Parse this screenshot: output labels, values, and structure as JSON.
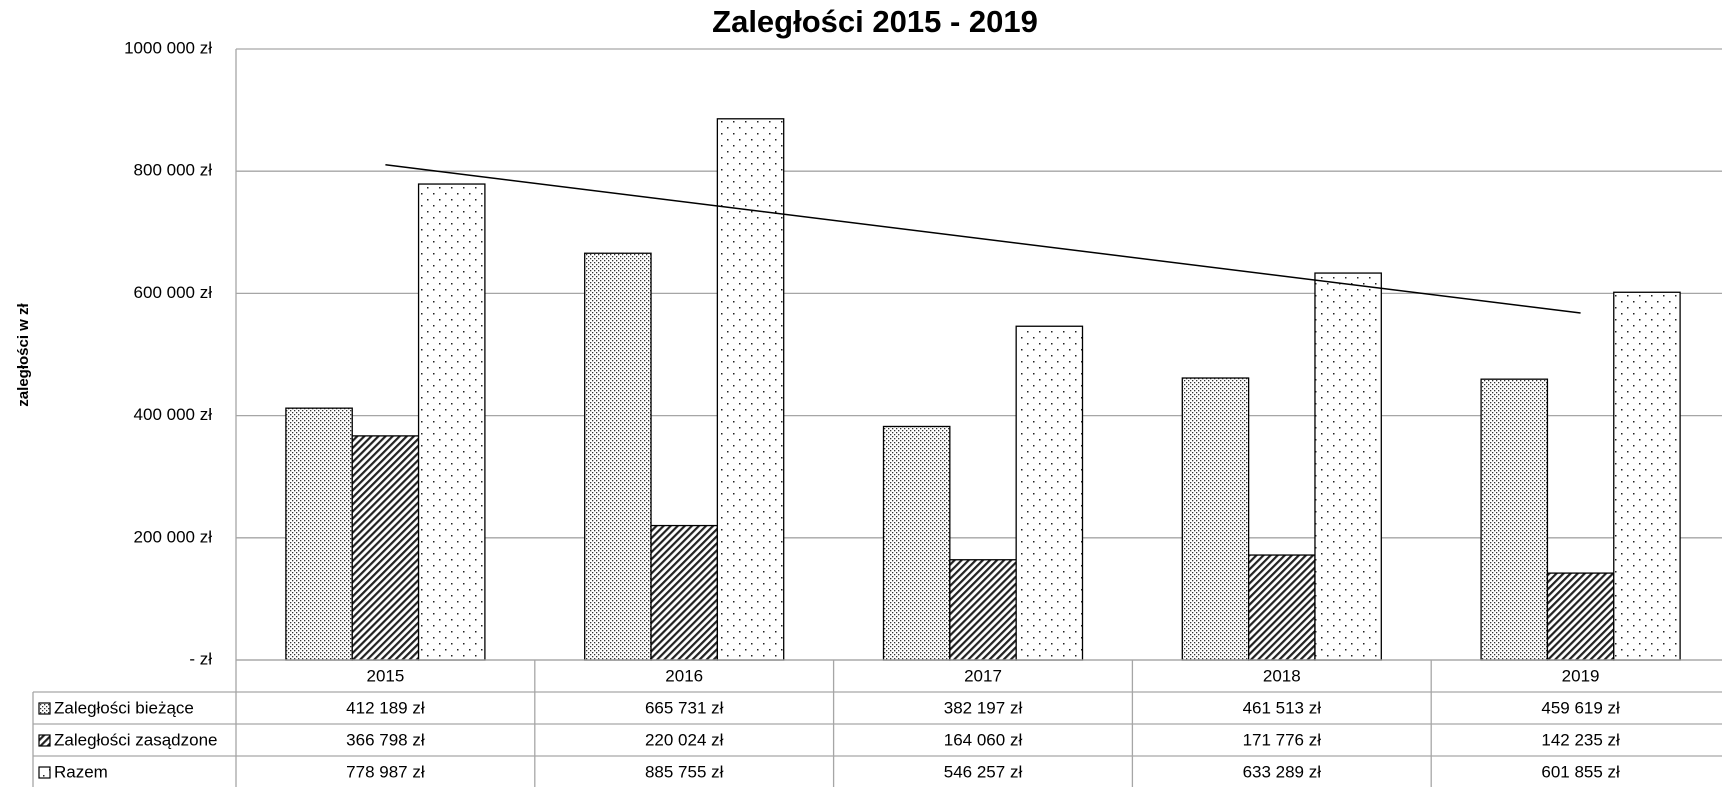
{
  "chart_data": {
    "type": "bar",
    "title": "Zaległości 2015 - 2019",
    "y_label": "zaległości  w zł",
    "categories": [
      "2015",
      "2016",
      "2017",
      "2018",
      "2019"
    ],
    "series": [
      {
        "name": "Zaległości bieżące",
        "pattern": "dense-dots",
        "color": "#000000",
        "values": [
          412189,
          665731,
          382197,
          461513,
          459619
        ],
        "value_labels": [
          "412 189 zł",
          "665 731 zł",
          "382 197 zł",
          "461 513 zł",
          "459 619 zł"
        ]
      },
      {
        "name": "Zaległości zasądzone",
        "pattern": "diagonal-hatch",
        "color": "#000000",
        "values": [
          366798,
          220024,
          164060,
          171776,
          142235
        ],
        "value_labels": [
          "366 798 zł",
          "220 024 zł",
          "164 060 zł",
          "171 776 zł",
          "142 235 zł"
        ]
      },
      {
        "name": "Razem",
        "pattern": "sparse-dots",
        "color": "#000000",
        "trendline": "linear",
        "values": [
          778987,
          885755,
          546257,
          633289,
          601855
        ],
        "value_labels": [
          "778 987 zł",
          "885 755 zł",
          "546 257 zł",
          "633 289 zł",
          "601 855 zł"
        ]
      }
    ],
    "ylim": [
      0,
      1000000
    ],
    "yticks": [
      {
        "value": 0,
        "label": "-  zł"
      },
      {
        "value": 200000,
        "label": "200 000 zł"
      },
      {
        "value": 400000,
        "label": "400 000 zł"
      },
      {
        "value": 600000,
        "label": "600 000 zł"
      },
      {
        "value": 800000,
        "label": "800 000 zł"
      },
      {
        "value": 1000000,
        "label": "1000 000 zł"
      }
    ],
    "grid": true,
    "data_table": true
  }
}
